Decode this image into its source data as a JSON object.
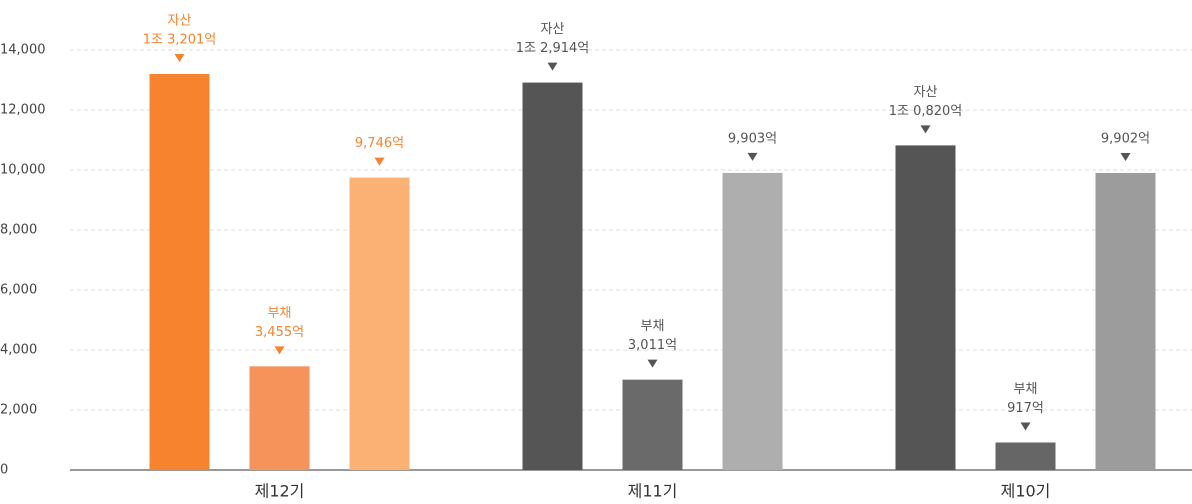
{
  "chart_data": {
    "type": "bar",
    "categories": [
      "제12기",
      "제11기",
      "제10기"
    ],
    "series": [
      {
        "name": "자산",
        "values": [
          13201,
          12914,
          10820
        ],
        "value_labels": [
          "1조 3,201억",
          "1조 2,914억",
          "1조 0,820억"
        ],
        "colors": [
          "#f7832f",
          "#555555",
          "#555555"
        ]
      },
      {
        "name": "부채",
        "values": [
          3455,
          3011,
          917
        ],
        "value_labels": [
          "3,455억",
          "3,011억",
          "917억"
        ],
        "colors": [
          "#f5935a",
          "#6a6a6a",
          "#666666"
        ]
      },
      {
        "values": [
          9746,
          9903,
          9902
        ],
        "value_labels": [
          "9,746억",
          "9,903억",
          "9,902억"
        ],
        "colors": [
          "#fbb074",
          "#aeaeae",
          "#9c9c9c"
        ]
      }
    ],
    "label_colors": [
      "#f7832f",
      "#555555",
      "#555555"
    ],
    "ylim": [
      0,
      14000
    ],
    "yticks": [
      0,
      {
        "value": 2000,
        "label": "2,000"
      },
      {
        "value": 4000,
        "label": "4,000"
      },
      {
        "value": 6000,
        "label": "6,000"
      },
      {
        "value": 8000,
        "label": "8,000"
      },
      {
        "value": 10000,
        "label": "10,000"
      },
      {
        "value": 12000,
        "label": "12,000"
      },
      {
        "value": 14000,
        "label": "14,000"
      }
    ],
    "grid": true
  }
}
